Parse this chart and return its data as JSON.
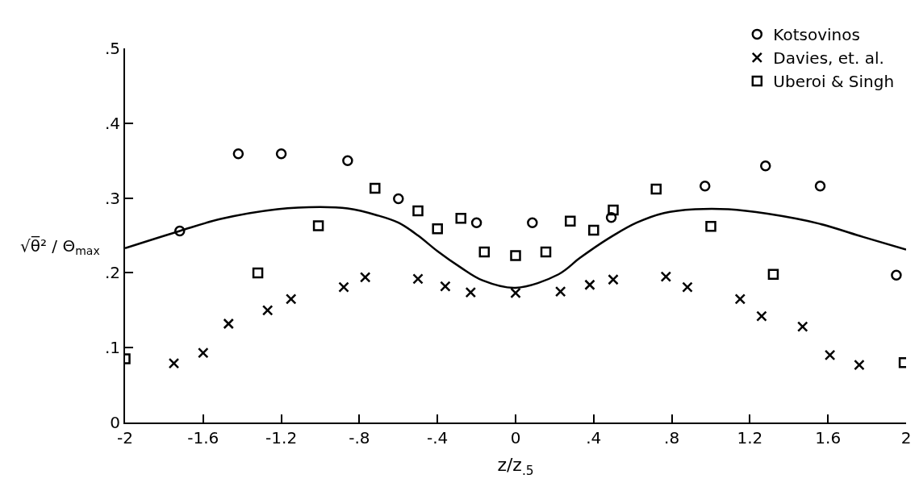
{
  "chart_data": {
    "type": "scatter",
    "xlabel": "z/z$_{.5}$",
    "ylabel": "√θ̅² / Θ$_{max}$",
    "xlim": [
      -2,
      2
    ],
    "ylim": [
      0,
      0.5
    ],
    "xticks": [
      {
        "value": -2,
        "label": "-2"
      },
      {
        "value": -1.6,
        "label": "-1.6"
      },
      {
        "value": -1.2,
        "label": "-1.2"
      },
      {
        "value": -0.8,
        "label": "-.8"
      },
      {
        "value": -0.4,
        "label": "-.4"
      },
      0,
      {
        "value": 0.4,
        "label": ".4"
      },
      {
        "value": 0.8,
        "label": ".8"
      },
      {
        "value": 1.2,
        "label": "1.2"
      },
      {
        "value": 1.6,
        "label": "1.6"
      },
      2
    ],
    "yticks": [
      0,
      {
        "value": 0.1,
        "label": ".1"
      },
      {
        "value": 0.2,
        "label": ".2"
      },
      {
        "value": 0.3,
        "label": ".3"
      },
      {
        "value": 0.4,
        "label": ".4"
      },
      {
        "value": 0.5,
        "label": ".5"
      }
    ],
    "legend": "top right",
    "series": [
      {
        "name": "Kotsovinos",
        "color": "#000000",
        "marker": "circle",
        "x": [
          -1.72,
          -1.42,
          -1.2,
          -0.86,
          -0.6,
          -0.2,
          0.086,
          0.49,
          0.97,
          1.28,
          1.56,
          1.95
        ],
        "values": [
          0.256,
          0.359,
          0.359,
          0.35,
          0.299,
          0.267,
          0.267,
          0.274,
          0.316,
          0.343,
          0.316,
          0.197
        ]
      },
      {
        "name": "Davies, et. al.",
        "color": "#000000",
        "marker": "cross",
        "x": [
          -1.75,
          -1.6,
          -1.47,
          -1.27,
          -1.15,
          -0.88,
          -0.77,
          -0.5,
          -0.36,
          -0.23,
          0,
          0.23,
          0.38,
          0.5,
          0.77,
          0.88,
          1.15,
          1.26,
          1.47,
          1.61,
          1.76
        ],
        "values": [
          0.079,
          0.093,
          0.132,
          0.15,
          0.165,
          0.181,
          0.194,
          0.192,
          0.182,
          0.174,
          0.173,
          0.175,
          0.184,
          0.191,
          0.195,
          0.181,
          0.165,
          0.142,
          0.128,
          0.09,
          0.077
        ]
      },
      {
        "name": "Uberoi & Singh",
        "color": "#000000",
        "marker": "square",
        "x": [
          -2.0,
          -1.32,
          -1.01,
          -0.72,
          -0.5,
          -0.4,
          -0.28,
          -0.16,
          0,
          0.155,
          0.28,
          0.4,
          0.5,
          0.72,
          1.0,
          1.32,
          1.99
        ],
        "values": [
          0.085,
          0.2,
          0.263,
          0.313,
          0.283,
          0.259,
          0.273,
          0.228,
          0.223,
          0.228,
          0.269,
          0.257,
          0.284,
          0.312,
          0.262,
          0.198,
          0.08
        ]
      },
      {
        "type": "line",
        "color": "#000000",
        "line_style": "solid",
        "marker": "none",
        "x": [
          -2,
          -1.72,
          -1.51,
          -1.22,
          -1.0,
          -0.86,
          -0.71,
          -0.6,
          -0.5,
          -0.4,
          -0.28,
          -0.17,
          0,
          0.22,
          0.33,
          0.47,
          0.62,
          0.76,
          0.92,
          1.09,
          1.29,
          1.55,
          1.78,
          2.0
        ],
        "values": [
          0.233,
          0.256,
          0.272,
          0.285,
          0.288,
          0.286,
          0.277,
          0.267,
          0.25,
          0.229,
          0.207,
          0.19,
          0.18,
          0.198,
          0.22,
          0.245,
          0.267,
          0.28,
          0.285,
          0.285,
          0.279,
          0.266,
          0.248,
          0.231
        ]
      }
    ]
  }
}
